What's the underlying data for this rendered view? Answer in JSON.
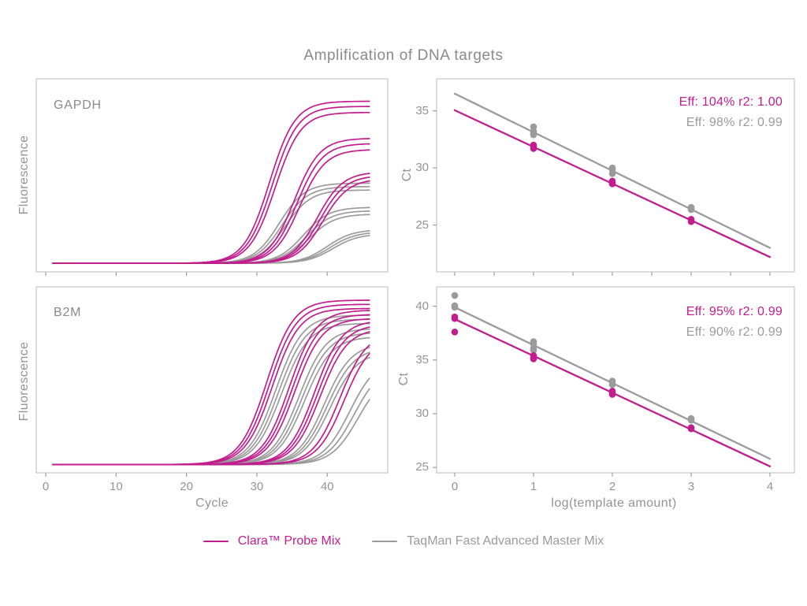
{
  "title": "Amplification of DNA targets",
  "colors": {
    "clara": "#c21d8f",
    "taqman": "#9b9b9b",
    "text": "#949494",
    "title_text": "#8a8a8a",
    "panel_border": "#c6c6c6",
    "tick": "#9e9e9e"
  },
  "legend": {
    "items": [
      {
        "label": "Clara™ Probe Mix",
        "series": "clara"
      },
      {
        "label": "TaqMan Fast Advanced Master Mix",
        "series": "taqman"
      }
    ]
  },
  "chart_data": [
    {
      "id": "gapdh_amplification",
      "type": "line",
      "facet_label": "GAPDH",
      "xlabel": "",
      "ylabel": "Fluorescence",
      "xlim": [
        -1.35,
        48.6
      ],
      "ylim": [
        -0.02,
        1.1
      ],
      "x_ticks": [
        0,
        10,
        20,
        30,
        40
      ],
      "x_tick_labels": [],
      "y_ticks": [],
      "y_tick_labels": [],
      "x_range": [
        1,
        46
      ],
      "baseline": 0.03,
      "series": [
        {
          "name": "TaqMan Fast Advanced Master Mix",
          "color_key": "taqman",
          "k": 0.55,
          "curves": [
            {
              "midpoint": 33.2,
              "plateau": 0.465
            },
            {
              "midpoint": 33.6,
              "plateau": 0.445
            },
            {
              "midpoint": 34.0,
              "plateau": 0.425
            },
            {
              "midpoint": 36.6,
              "plateau": 0.325
            },
            {
              "midpoint": 37.0,
              "plateau": 0.305
            },
            {
              "midpoint": 37.4,
              "plateau": 0.285
            },
            {
              "midpoint": 40.0,
              "plateau": 0.195
            },
            {
              "midpoint": 40.4,
              "plateau": 0.182
            },
            {
              "midpoint": 40.8,
              "plateau": 0.17
            }
          ]
        },
        {
          "name": "Clara Probe Mix",
          "color_key": "clara",
          "k": 0.55,
          "curves": [
            {
              "midpoint": 31.8,
              "plateau": 0.94
            },
            {
              "midpoint": 32.2,
              "plateau": 0.91
            },
            {
              "midpoint": 32.6,
              "plateau": 0.875
            },
            {
              "midpoint": 35.3,
              "plateau": 0.725
            },
            {
              "midpoint": 35.7,
              "plateau": 0.695
            },
            {
              "midpoint": 36.1,
              "plateau": 0.66
            },
            {
              "midpoint": 38.6,
              "plateau": 0.53
            },
            {
              "midpoint": 39.0,
              "plateau": 0.51
            },
            {
              "midpoint": 39.4,
              "plateau": 0.49
            }
          ]
        }
      ]
    },
    {
      "id": "b2m_amplification",
      "type": "line",
      "facet_label": "B2M",
      "xlabel": "Cycle",
      "ylabel": "Fluorescence",
      "xlim": [
        -1.35,
        48.6
      ],
      "ylim": [
        -0.02,
        1.1
      ],
      "x_ticks": [
        0,
        10,
        20,
        30,
        40
      ],
      "x_tick_labels": [
        "0",
        "10",
        "20",
        "30",
        "40"
      ],
      "y_ticks": [],
      "y_tick_labels": [],
      "x_range": [
        1,
        46
      ],
      "baseline": 0.03,
      "series": [
        {
          "name": "TaqMan Fast Advanced Master Mix",
          "color_key": "taqman",
          "k": 0.52,
          "curves": [
            {
              "midpoint": 32.7,
              "plateau": 0.9
            },
            {
              "midpoint": 33.1,
              "plateau": 0.875
            },
            {
              "midpoint": 33.5,
              "plateau": 0.85
            },
            {
              "midpoint": 36.0,
              "plateau": 0.82
            },
            {
              "midpoint": 36.4,
              "plateau": 0.795
            },
            {
              "midpoint": 36.8,
              "plateau": 0.77
            },
            {
              "midpoint": 39.6,
              "plateau": 0.73
            },
            {
              "midpoint": 40.0,
              "plateau": 0.705
            },
            {
              "midpoint": 40.4,
              "plateau": 0.68
            },
            {
              "midpoint": 43.2,
              "plateau": 0.64
            },
            {
              "midpoint": 43.8,
              "plateau": 0.6
            },
            {
              "midpoint": 44.4,
              "plateau": 0.56
            }
          ]
        },
        {
          "name": "Clara Probe Mix",
          "color_key": "clara",
          "k": 0.52,
          "curves": [
            {
              "midpoint": 31.4,
              "plateau": 0.99
            },
            {
              "midpoint": 31.8,
              "plateau": 0.965
            },
            {
              "midpoint": 32.2,
              "plateau": 0.94
            },
            {
              "midpoint": 34.6,
              "plateau": 0.93
            },
            {
              "midpoint": 35.0,
              "plateau": 0.905
            },
            {
              "midpoint": 35.4,
              "plateau": 0.88
            },
            {
              "midpoint": 38.2,
              "plateau": 0.87
            },
            {
              "midpoint": 38.6,
              "plateau": 0.845
            },
            {
              "midpoint": 39.0,
              "plateau": 0.82
            },
            {
              "midpoint": 41.8,
              "plateau": 0.8
            },
            {
              "midpoint": 42.4,
              "plateau": 0.77
            }
          ]
        }
      ]
    },
    {
      "id": "gapdh_standard_curve",
      "type": "scatter",
      "facet_label": "",
      "xlabel": "",
      "ylabel": "Ct",
      "xlim": [
        -0.23,
        4.31
      ],
      "ylim": [
        20.9,
        37.8
      ],
      "x_ticks": [
        0,
        0.5,
        1,
        1.5,
        2,
        2.5,
        3,
        3.5,
        4
      ],
      "x_tick_labels": [],
      "y_ticks": [
        25,
        30,
        35
      ],
      "y_tick_labels": [
        "25",
        "30",
        "35"
      ],
      "stats": [
        {
          "label": "Eff: 104% r2: 1.00",
          "color_key": "clara"
        },
        {
          "label": "Eff: 98% r2: 0.99",
          "color_key": "taqman"
        }
      ],
      "series": [
        {
          "name": "TaqMan Fast Advanced Master Mix",
          "color_key": "taqman",
          "points": [
            [
              1,
              33.6
            ],
            [
              1,
              33.2
            ],
            [
              1,
              33.0
            ],
            [
              1,
              32.9
            ],
            [
              2,
              30.0
            ],
            [
              2,
              29.85
            ],
            [
              2,
              29.5
            ],
            [
              3,
              26.55
            ],
            [
              3,
              26.45
            ],
            [
              3,
              26.35
            ]
          ],
          "fit_line": {
            "x": [
              0,
              4
            ],
            "y": [
              36.5,
              23.0
            ]
          }
        },
        {
          "name": "Clara Probe Mix",
          "color_key": "clara",
          "points": [
            [
              1,
              32.0
            ],
            [
              1,
              31.85
            ],
            [
              1,
              31.7
            ],
            [
              2,
              28.85
            ],
            [
              2,
              28.7
            ],
            [
              2,
              28.6
            ],
            [
              3,
              25.5
            ],
            [
              3,
              25.4
            ],
            [
              3,
              25.3
            ]
          ],
          "fit_line": {
            "x": [
              0,
              4
            ],
            "y": [
              35.05,
              22.2
            ]
          }
        }
      ]
    },
    {
      "id": "b2m_standard_curve",
      "type": "scatter",
      "facet_label": "",
      "xlabel": "log(template amount)",
      "ylabel": "Ct",
      "xlim": [
        -0.23,
        4.31
      ],
      "ylim": [
        24.5,
        41.8
      ],
      "x_ticks": [
        0,
        1,
        2,
        3,
        4
      ],
      "x_tick_labels": [
        "0",
        "1",
        "2",
        "3",
        "4"
      ],
      "y_ticks": [
        25,
        30,
        35,
        40
      ],
      "y_tick_labels": [
        "25",
        "30",
        "35",
        "40"
      ],
      "stats": [
        {
          "label": "Eff: 95% r2: 0.99",
          "color_key": "clara"
        },
        {
          "label": "Eff: 90% r2: 0.99",
          "color_key": "taqman"
        }
      ],
      "series": [
        {
          "name": "TaqMan Fast Advanced Master Mix",
          "color_key": "taqman",
          "points": [
            [
              0,
              41.0
            ],
            [
              0,
              40.05
            ],
            [
              0,
              39.9
            ],
            [
              1,
              36.7
            ],
            [
              1,
              36.5
            ],
            [
              1,
              36.1
            ],
            [
              1,
              35.9
            ],
            [
              2,
              33.05
            ],
            [
              2,
              32.9
            ],
            [
              2,
              32.7
            ],
            [
              3,
              29.55
            ],
            [
              3,
              29.4
            ]
          ],
          "fit_line": {
            "x": [
              0,
              4
            ],
            "y": [
              39.9,
              25.8
            ]
          }
        },
        {
          "name": "Clara Probe Mix",
          "color_key": "clara",
          "points": [
            [
              0,
              39.0
            ],
            [
              0,
              38.85
            ],
            [
              0,
              37.6
            ],
            [
              1,
              35.4
            ],
            [
              1,
              35.2
            ],
            [
              1,
              35.1
            ],
            [
              2,
              32.1
            ],
            [
              2,
              31.95
            ],
            [
              2,
              31.8
            ],
            [
              3,
              28.7
            ],
            [
              3,
              28.6
            ]
          ],
          "fit_line": {
            "x": [
              0,
              4
            ],
            "y": [
              38.8,
              25.1
            ]
          }
        }
      ]
    }
  ]
}
